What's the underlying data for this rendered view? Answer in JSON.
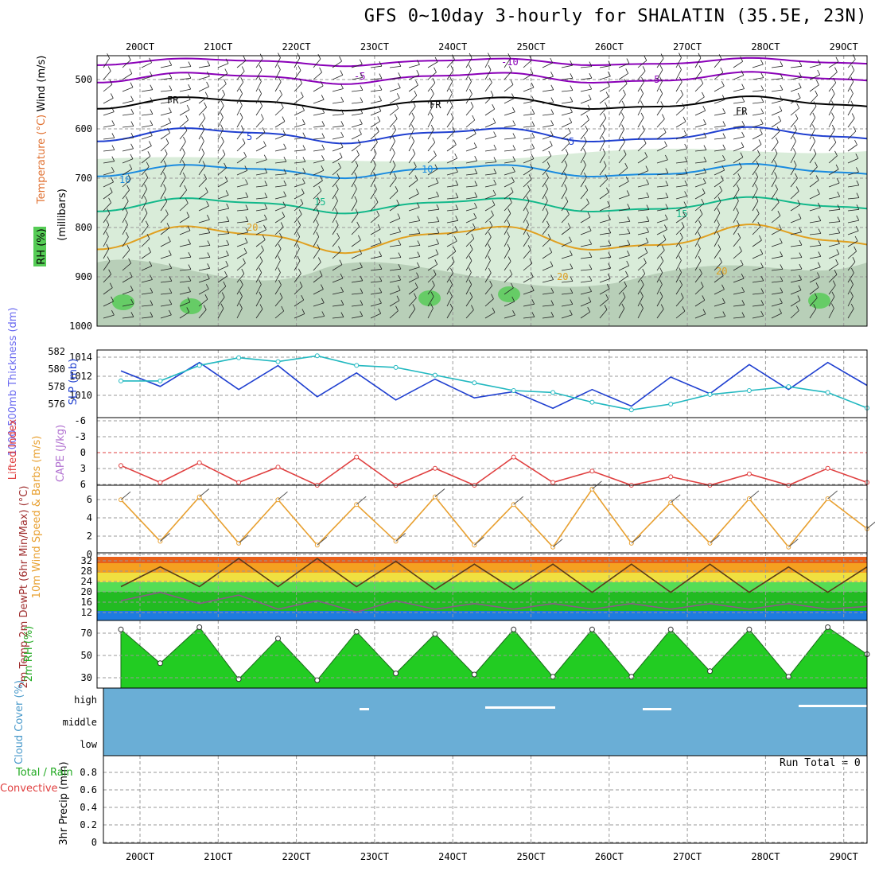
{
  "title": "GFS 0~10day 3-hourly for SHALATIN (35.5E, 23N)",
  "dates": [
    "20OCT",
    "21OCT",
    "22OCT",
    "23OCT",
    "24OCT",
    "25OCT",
    "26OCT",
    "27OCT",
    "28OCT",
    "29OCT"
  ],
  "panels": {
    "upper": {
      "ylabel_wind": "Wind (m/s)",
      "ylabel_temp": "Temperature (°C)",
      "ylabel_rh": "RH (%)",
      "ylabel_mb": "(millibars)",
      "pressure_ticks": [
        "500",
        "600",
        "700",
        "800",
        "900",
        "1000"
      ],
      "contour_labels": [
        {
          "text": "-10",
          "color": "#8a00b8"
        },
        {
          "text": "-5",
          "color": "#8a00b8"
        },
        {
          "text": "-5",
          "color": "#8a00b8"
        },
        {
          "text": "FR",
          "color": "#000000"
        },
        {
          "text": "FR",
          "color": "#000000"
        },
        {
          "text": "FR",
          "color": "#000000"
        },
        {
          "text": "5",
          "color": "#1f3fd0"
        },
        {
          "text": "5",
          "color": "#1f3fd0"
        },
        {
          "text": "10",
          "color": "#1a8be0"
        },
        {
          "text": "10",
          "color": "#1a8be0"
        },
        {
          "text": "15",
          "color": "#12b88a"
        },
        {
          "text": "15",
          "color": "#12b88a"
        },
        {
          "text": "20",
          "color": "#e0a020"
        },
        {
          "text": "20",
          "color": "#e0a020"
        },
        {
          "text": "20",
          "color": "#e0a020"
        }
      ]
    },
    "slp": {
      "ylabel_thick": "1000-500mb Thickness (dm)",
      "ylabel_slp": "SLP (mb)",
      "thick_ticks": [
        "582",
        "580",
        "578",
        "576"
      ],
      "slp_ticks": [
        "1014",
        "1012",
        "1010"
      ]
    },
    "li": {
      "ylabel_li": "Lifted Index",
      "ylabel_cape": "CAPE (J/kg)",
      "ticks": [
        "-6",
        "-3",
        "0",
        "3",
        "6"
      ]
    },
    "wind10": {
      "ylabel": "10m Wind Speed & Barbs (m/s)",
      "ticks": [
        "6",
        "4",
        "2",
        "0"
      ]
    },
    "temp2m": {
      "ylabel": "2m Temp 2m DewPt (6hr Min/Max) (°C)",
      "ticks": [
        "32",
        "28",
        "24",
        "20",
        "16",
        "12"
      ]
    },
    "rh2m": {
      "ylabel": "2m RH (%)",
      "ticks": [
        "70",
        "50",
        "30"
      ]
    },
    "cloud": {
      "ylabel": "Cloud Cover (%)",
      "levels": [
        "high",
        "middle",
        "low"
      ]
    },
    "precip": {
      "ylabel_left": "Total / Rain Convective",
      "ylabel": "3hr Precip (mm)",
      "ticks": [
        "0.8",
        "0.6",
        "0.4",
        "0.2",
        "0"
      ],
      "run_total": "Run Total = 0"
    }
  },
  "colors": {
    "rh_shade": "#d9ecd9",
    "slp_line": "#1f3fd0",
    "thickness_line": "#22b8c0",
    "li_line": "#e04040",
    "wind_line": "#e8a030",
    "cloud_fill": "#6aaed6",
    "rh2m_fill": "#22cc22"
  },
  "chart_data": [
    {
      "type": "line",
      "title": "SLP (mb)",
      "x": [
        "20OCT",
        "20OCT 12Z",
        "21OCT",
        "21OCT 12Z",
        "22OCT",
        "22OCT 12Z",
        "23OCT",
        "23OCT 12Z",
        "24OCT",
        "24OCT 12Z",
        "25OCT",
        "25OCT 12Z",
        "26OCT",
        "26OCT 12Z",
        "27OCT",
        "27OCT 12Z",
        "28OCT",
        "28OCT 12Z",
        "29OCT",
        "29OCT 12Z"
      ],
      "series": [
        {
          "name": "SLP (mb)",
          "values": [
            1013.0,
            1011.5,
            1013.8,
            1011.2,
            1013.5,
            1010.5,
            1012.8,
            1010.2,
            1012.2,
            1010.4,
            1011.0,
            1009.4,
            1011.2,
            1009.6,
            1012.4,
            1010.8,
            1013.6,
            1011.2,
            1013.8,
            1011.6
          ]
        },
        {
          "name": "1000-500mb Thickness (dm)",
          "values": [
            578.8,
            578.8,
            580.4,
            581.2,
            580.8,
            581.4,
            580.4,
            580.2,
            579.4,
            578.6,
            577.8,
            577.6,
            576.6,
            575.8,
            576.4,
            577.4,
            577.8,
            578.2,
            577.6,
            576.0
          ]
        }
      ],
      "ylim_slp": [
        1008.5,
        1015
      ],
      "ylim_thick": [
        575,
        582
      ]
    },
    {
      "type": "line",
      "title": "Lifted Index",
      "x": [
        "20OCT",
        "20OCT 12Z",
        "21OCT",
        "21OCT 12Z",
        "22OCT",
        "22OCT 12Z",
        "23OCT",
        "23OCT 12Z",
        "24OCT",
        "24OCT 12Z",
        "25OCT",
        "25OCT 12Z",
        "26OCT",
        "26OCT 12Z",
        "27OCT",
        "27OCT 12Z",
        "28OCT",
        "28OCT 12Z",
        "29OCT",
        "29OCT 12Z"
      ],
      "values": [
        2.5,
        5.5,
        2.0,
        5.5,
        2.8,
        6.0,
        1.0,
        6.0,
        3.0,
        6.0,
        1.0,
        5.5,
        3.5,
        6.0,
        4.5,
        6.0,
        4.0,
        6.0,
        3.0,
        5.5
      ],
      "ylim": [
        -6,
        6
      ]
    },
    {
      "type": "line",
      "title": "10m Wind Speed (m/s)",
      "x": [
        "20OCT",
        "20OCT 12Z",
        "21OCT",
        "21OCT 12Z",
        "22OCT",
        "22OCT 12Z",
        "23OCT",
        "23OCT 12Z",
        "24OCT",
        "24OCT 12Z",
        "25OCT",
        "25OCT 12Z",
        "26OCT",
        "26OCT 12Z",
        "27OCT",
        "27OCT 12Z",
        "28OCT",
        "28OCT 12Z",
        "29OCT",
        "29OCT 12Z"
      ],
      "values": [
        5.5,
        1.2,
        5.8,
        1.0,
        5.5,
        0.8,
        5.0,
        1.2,
        5.8,
        0.8,
        5.0,
        0.6,
        6.6,
        1.0,
        5.2,
        1.0,
        5.6,
        0.6,
        5.6,
        2.5
      ],
      "ylim": [
        0,
        7
      ]
    },
    {
      "type": "area",
      "title": "2m Temp (°C)",
      "x": [
        "20OCT",
        "20OCT 12Z",
        "21OCT",
        "21OCT 12Z",
        "22OCT",
        "22OCT 12Z",
        "23OCT",
        "23OCT 12Z",
        "24OCT",
        "24OCT 12Z",
        "25OCT",
        "25OCT 12Z",
        "26OCT",
        "26OCT 12Z",
        "27OCT",
        "27OCT 12Z",
        "28OCT",
        "28OCT 12Z",
        "29OCT",
        "29OCT 12Z"
      ],
      "series": [
        {
          "name": "2m Temp",
          "values": [
            22,
            29,
            22,
            32,
            22,
            32,
            22,
            31,
            21,
            30,
            21,
            30,
            20,
            30,
            20,
            30,
            20,
            29,
            20,
            29
          ]
        },
        {
          "name": "2m DewPt",
          "values": [
            17,
            20,
            16,
            19,
            14,
            17,
            13,
            17,
            14,
            16,
            14,
            16,
            14,
            16,
            14,
            16,
            14,
            16,
            14,
            15
          ]
        }
      ],
      "ylim": [
        10,
        34
      ]
    },
    {
      "type": "area",
      "title": "2m RH (%)",
      "x": [
        "20OCT",
        "20OCT 12Z",
        "21OCT",
        "21OCT 12Z",
        "22OCT",
        "22OCT 12Z",
        "23OCT",
        "23OCT 12Z",
        "24OCT",
        "24OCT 12Z",
        "25OCT",
        "25OCT 12Z",
        "26OCT",
        "26OCT 12Z",
        "27OCT",
        "27OCT 12Z",
        "28OCT",
        "28OCT 12Z",
        "29OCT",
        "29OCT 12Z"
      ],
      "values": [
        72,
        42,
        74,
        28,
        64,
        27,
        70,
        33,
        68,
        32,
        72,
        30,
        72,
        30,
        72,
        35,
        72,
        30,
        74,
        50
      ],
      "ylim": [
        20,
        80
      ]
    },
    {
      "type": "bar",
      "title": "3hr Precip (mm)",
      "values": [
        0
      ],
      "ylim": [
        0,
        1
      ]
    }
  ]
}
